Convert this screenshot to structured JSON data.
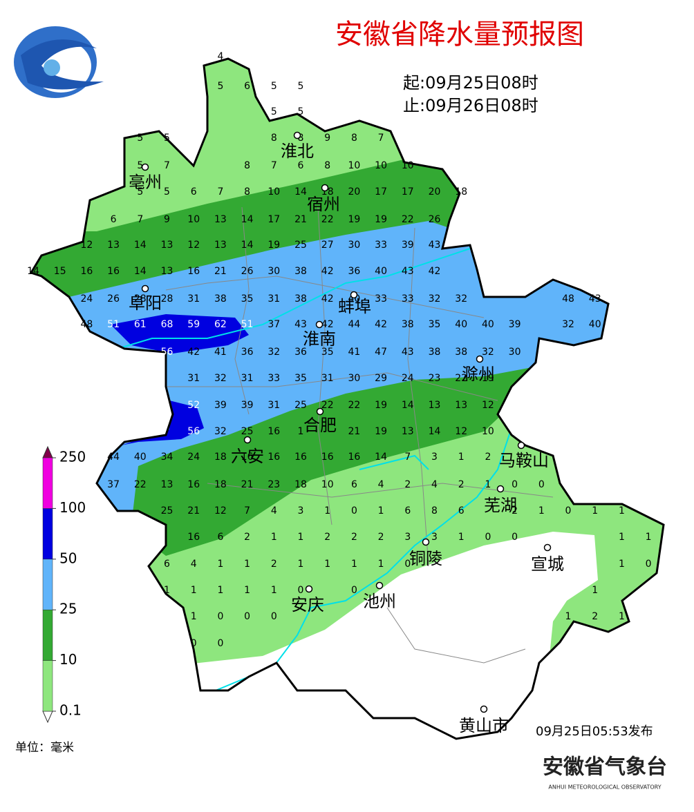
{
  "header": {
    "title": "安徽省降水量预报图",
    "start": "起:09月25日08时",
    "end": "止:09月26日08时"
  },
  "cities": [
    "淮北",
    "亳州",
    "宿州",
    "阜阳",
    "蚌埠",
    "淮南",
    "滁州",
    "合肥",
    "六安",
    "马鞍山",
    "芜湖",
    "铜陵",
    "宣城",
    "安庆",
    "池州",
    "黄山市"
  ],
  "station_values": [
    [
      [
        4
      ]
    ],
    [
      [
        5,
        6,
        5,
        5
      ]
    ],
    [
      [
        5,
        5
      ]
    ],
    [
      [
        5,
        5
      ],
      [
        8,
        8,
        9,
        8,
        7
      ]
    ],
    [
      [
        5,
        7
      ],
      [
        8,
        7,
        6,
        8,
        10,
        10,
        10
      ]
    ],
    [
      [
        5,
        5,
        6,
        7,
        8,
        10,
        14,
        18,
        20,
        17,
        17,
        20,
        18
      ]
    ],
    [
      [
        6,
        7,
        9,
        10,
        13,
        14,
        17,
        21,
        22,
        19,
        19,
        22,
        26
      ]
    ],
    [
      [
        12,
        13,
        14,
        13,
        12,
        13,
        14,
        19,
        25,
        27,
        30,
        33,
        39,
        43
      ]
    ],
    [
      [
        14,
        15,
        16,
        16,
        14,
        13,
        16,
        21,
        26,
        30,
        38,
        42,
        36,
        40,
        43,
        42
      ]
    ],
    [
      [
        24,
        26,
        28,
        28,
        31,
        38,
        35,
        31,
        38,
        42,
        40,
        33,
        33,
        32,
        32
      ],
      [
        48,
        43
      ]
    ],
    [
      [
        48,
        51,
        61,
        68,
        59,
        62,
        51,
        37,
        43,
        42,
        44,
        42,
        38,
        35,
        40,
        40,
        39
      ],
      [
        32,
        40
      ]
    ],
    [
      [
        56,
        42,
        41,
        36,
        32,
        36,
        35,
        41,
        47,
        43,
        38,
        38,
        32,
        30
      ]
    ],
    [
      [
        31,
        32,
        31,
        33,
        35,
        31,
        30,
        29,
        24,
        23,
        22,
        19
      ]
    ],
    [
      [
        52,
        39,
        39,
        31,
        25,
        22,
        22,
        19,
        14,
        13,
        13,
        12
      ]
    ],
    [
      [
        56,
        32,
        25,
        16,
        1
      ],
      [
        21,
        19,
        13,
        14,
        12,
        10
      ]
    ],
    [
      [
        44,
        40,
        34,
        24,
        18,
        16,
        16,
        16,
        16,
        16,
        14,
        7,
        3,
        1,
        2
      ]
    ],
    [
      [
        37,
        22,
        13,
        16,
        18,
        21,
        23,
        18,
        10,
        6,
        4,
        2,
        4,
        2,
        1,
        0,
        0
      ]
    ],
    [
      [
        25,
        21,
        12,
        7,
        4,
        3,
        1,
        0,
        1,
        6,
        8,
        6
      ],
      [
        2,
        1,
        0,
        1,
        1
      ]
    ],
    [
      [
        16,
        6,
        2,
        1,
        1,
        2,
        2,
        2,
        3,
        3,
        1,
        0,
        0
      ],
      [
        1,
        1
      ]
    ],
    [
      [
        6,
        4,
        1,
        1,
        2,
        1,
        1,
        1,
        1,
        0
      ],
      [
        1,
        0
      ]
    ],
    [
      [
        1,
        1,
        1,
        1,
        1,
        0
      ],
      [
        0
      ],
      [
        1
      ]
    ],
    [
      [
        1,
        0,
        0,
        0
      ],
      [
        1,
        2,
        1
      ]
    ],
    [
      [
        0,
        0
      ]
    ]
  ],
  "legend": {
    "ticks": [
      0.1,
      10,
      25,
      50,
      100,
      250
    ],
    "colors": [
      "#8ee67e",
      "#33a933",
      "#60b4fa",
      "#0000e0",
      "#f000e0"
    ],
    "unit": "单位：毫米"
  },
  "footer": {
    "issued": "09月25日05:53发布",
    "agency": "安徽省气象台",
    "agency_en": "ANHUI METEOROLOGICAL OBSERVATORY"
  }
}
